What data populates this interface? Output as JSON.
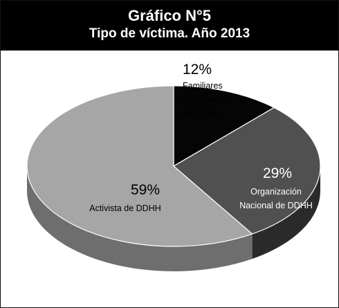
{
  "chart_data": {
    "type": "pie",
    "title": "Gráfico N°5",
    "subtitle": "Tipo de víctima. Año 2013",
    "slices": [
      {
        "label": "Familiares de activista de DDHH",
        "value": 12,
        "value_label": "12%",
        "color": "#050505",
        "side_color": "#000000"
      },
      {
        "label": "Organización Nacional de DDHH",
        "value": 29,
        "value_label": "29%",
        "color": "#505050",
        "side_color": "#2a2a2a"
      },
      {
        "label": "Activista de DDHH",
        "value": 59,
        "value_label": "59%",
        "color": "#a6a6a6",
        "side_color": "#6e6e6e"
      }
    ],
    "label_lines": [
      [
        "Familiares",
        "de activista",
        "de DDHH"
      ],
      [
        "Organización",
        "Nacional de DDHH"
      ],
      [
        "Activista de DDHH"
      ]
    ]
  }
}
